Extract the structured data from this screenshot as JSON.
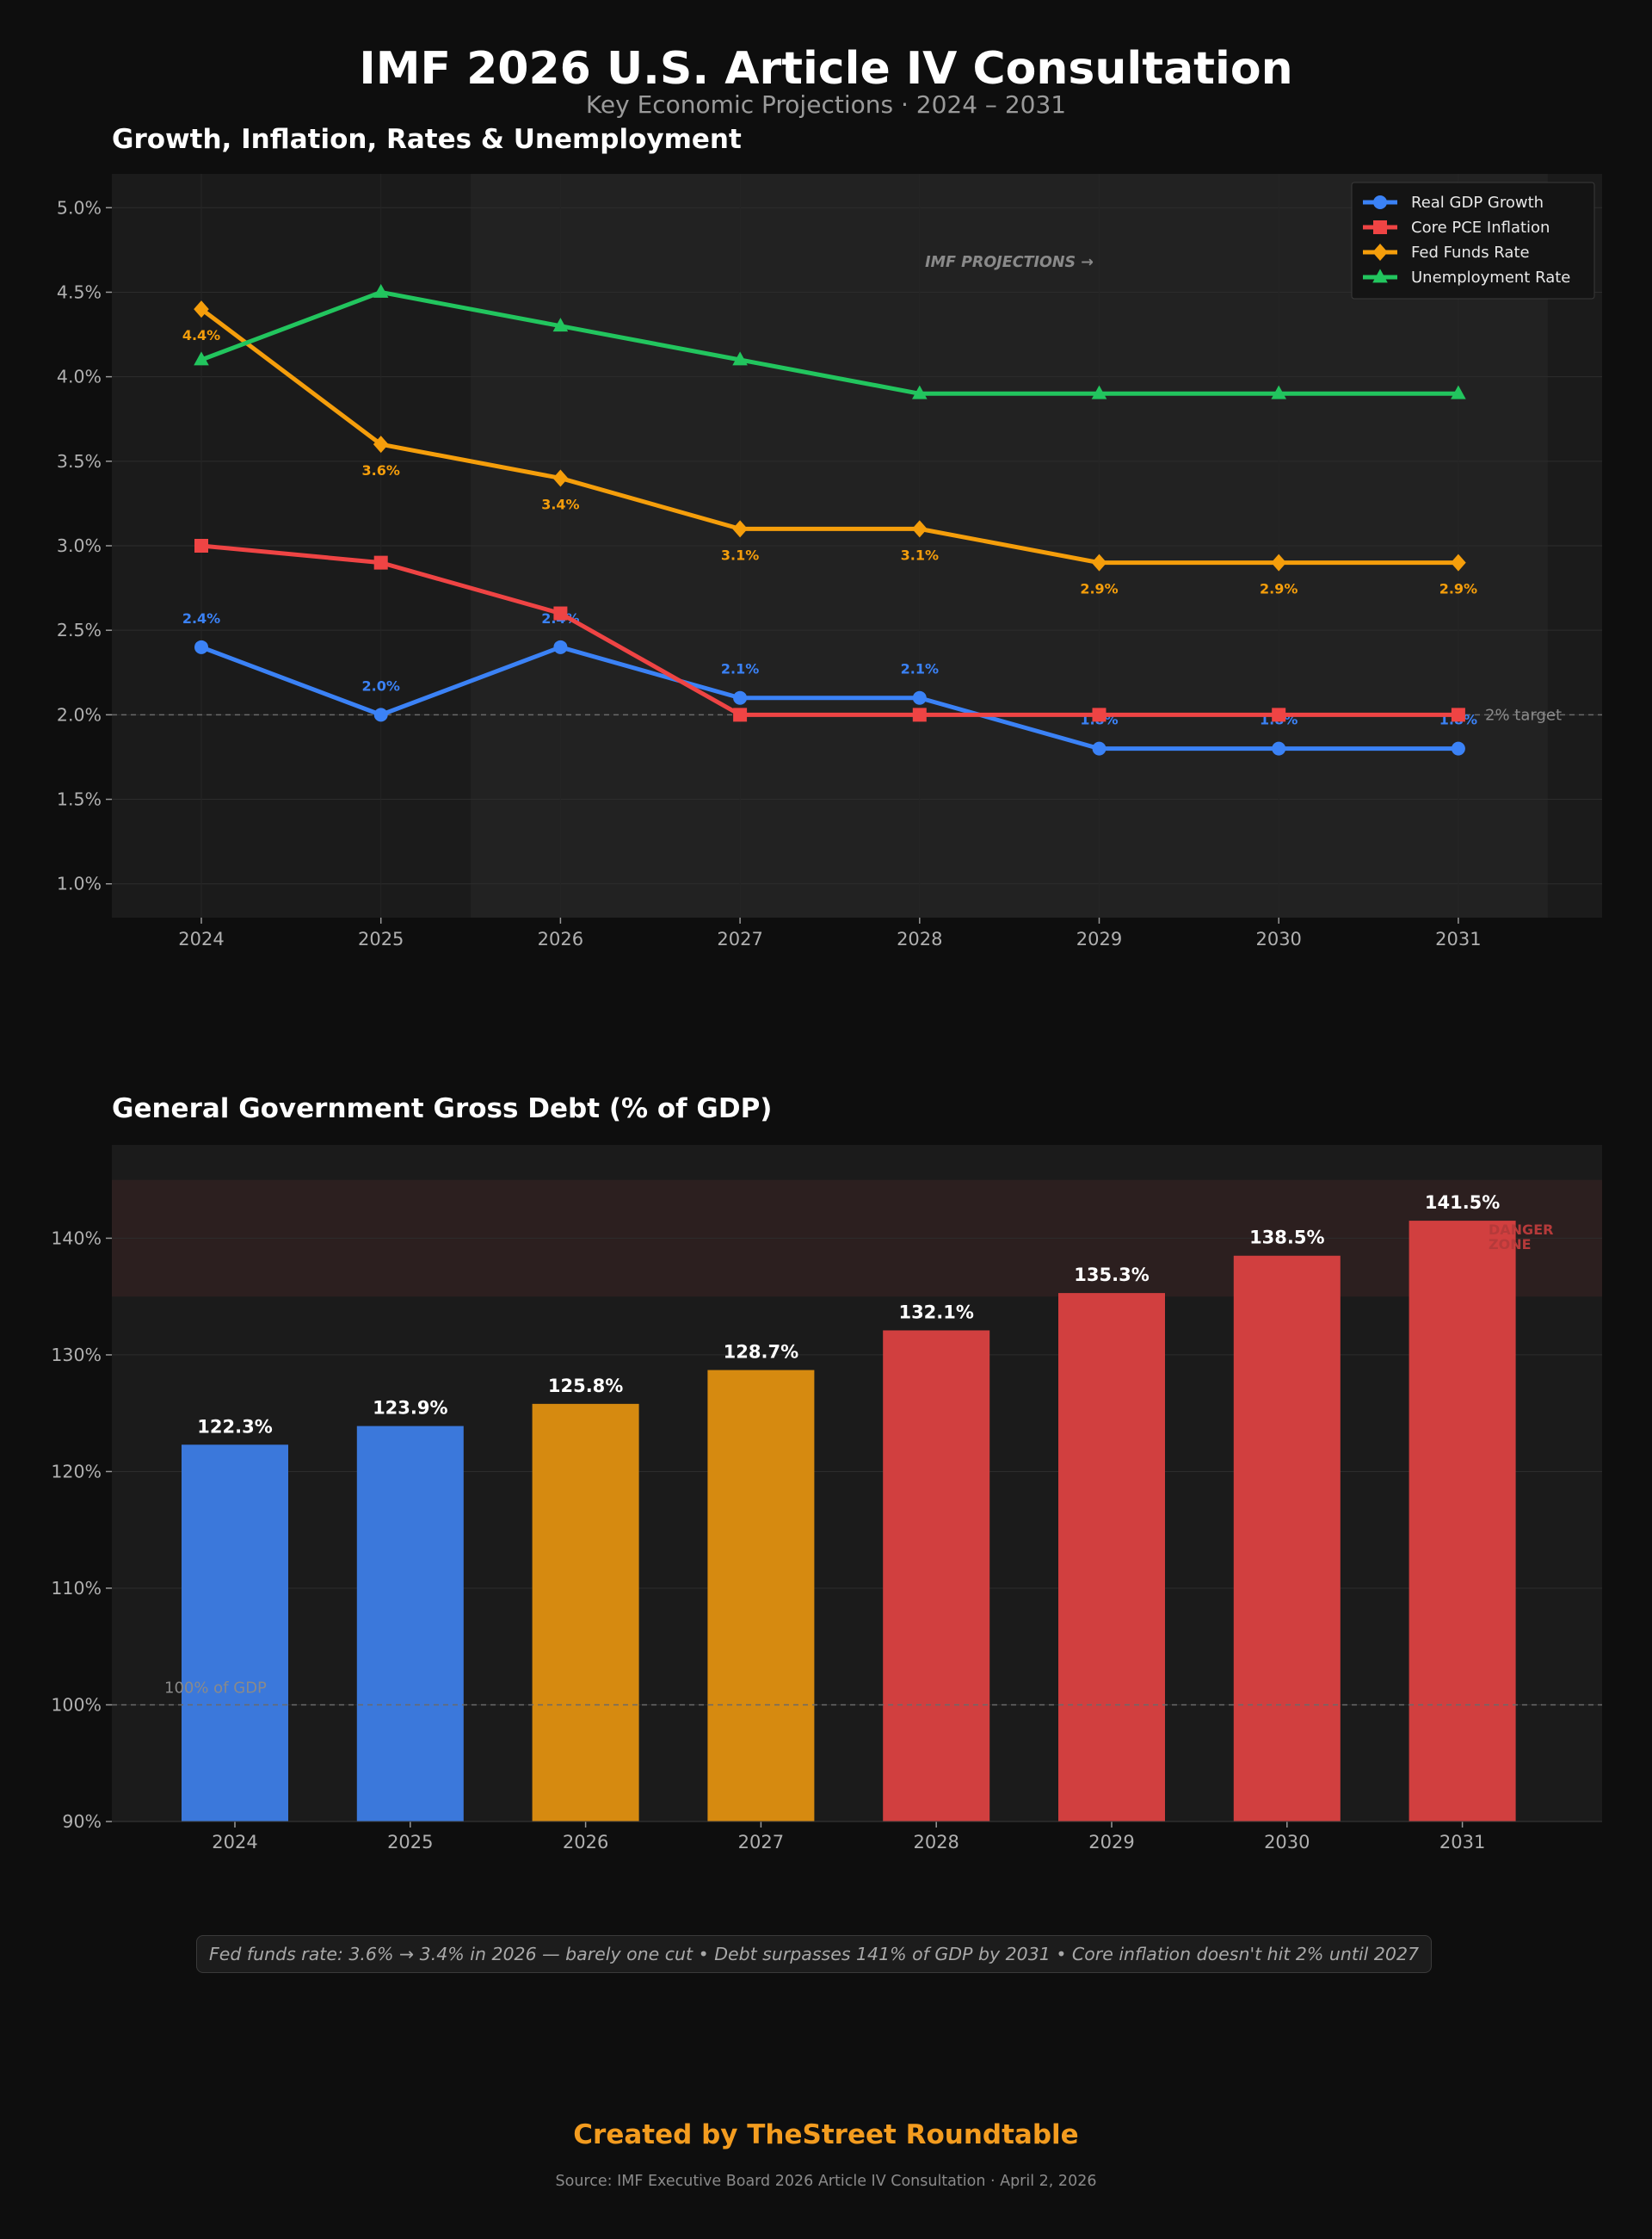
{
  "header": {
    "title": "IMF 2026 U.S. Article IV Consultation",
    "subtitle": "Key Economic Projections  ·  2024 – 2031"
  },
  "chart_data": [
    {
      "type": "line",
      "title": "Growth, Inflation, Rates & Unemployment",
      "x": [
        "2024",
        "2025",
        "2026",
        "2027",
        "2028",
        "2029",
        "2030",
        "2031"
      ],
      "ylim": [
        0.8,
        5.2
      ],
      "y_ticks": [
        "1.0%",
        "1.5%",
        "2.0%",
        "2.5%",
        "3.0%",
        "3.5%",
        "4.0%",
        "4.5%",
        "5.0%"
      ],
      "grid": true,
      "legend": "top-right",
      "projection_label": "IMF PROJECTIONS →",
      "projection_start": "2026",
      "reference_line": {
        "value": 2.0,
        "label": "2% target"
      },
      "series": [
        {
          "name": "Real GDP Growth",
          "color": "#3b82f6",
          "marker": "circle",
          "values": [
            2.4,
            2.0,
            2.4,
            2.1,
            2.1,
            1.8,
            1.8,
            1.8
          ],
          "labels": [
            "2.4%",
            "2.0%",
            "2.4%",
            "2.1%",
            "2.1%",
            "1.8%",
            "1.8%",
            "1.8%"
          ]
        },
        {
          "name": "Core PCE Inflation",
          "color": "#ef4444",
          "marker": "square",
          "values": [
            3.0,
            2.9,
            2.6,
            2.0,
            2.0,
            2.0,
            2.0,
            2.0
          ]
        },
        {
          "name": "Fed Funds Rate",
          "color": "#f59e0b",
          "marker": "diamond",
          "values": [
            4.4,
            3.6,
            3.4,
            3.1,
            3.1,
            2.9,
            2.9,
            2.9
          ],
          "labels": [
            "4.4%",
            "3.6%",
            "3.4%",
            "3.1%",
            "3.1%",
            "2.9%",
            "2.9%",
            "2.9%"
          ]
        },
        {
          "name": "Unemployment Rate",
          "color": "#22c55e",
          "marker": "triangle",
          "values": [
            4.1,
            4.5,
            4.3,
            4.1,
            3.9,
            3.9,
            3.9,
            3.9
          ]
        }
      ]
    },
    {
      "type": "bar",
      "title": "General Government Gross Debt (% of GDP)",
      "categories": [
        "2024",
        "2025",
        "2026",
        "2027",
        "2028",
        "2029",
        "2030",
        "2031"
      ],
      "values": [
        122.3,
        123.9,
        125.8,
        128.7,
        132.1,
        135.3,
        138.5,
        141.5
      ],
      "labels": [
        "122.3%",
        "123.9%",
        "125.8%",
        "128.7%",
        "132.1%",
        "135.3%",
        "138.5%",
        "141.5%"
      ],
      "bar_colors": [
        "#3b78db",
        "#3b78db",
        "#d68a10",
        "#d68a10",
        "#d13f3f",
        "#d13f3f",
        "#d13f3f",
        "#d13f3f"
      ],
      "ylim": [
        90,
        148
      ],
      "y_ticks": [
        "90%",
        "100%",
        "110%",
        "120%",
        "130%",
        "140%"
      ],
      "grid": true,
      "reference_line": {
        "value": 100,
        "label": "100% of GDP"
      },
      "danger_zone": {
        "from": 135,
        "to": 145,
        "label_line1": "DANGER",
        "label_line2": "ZONE"
      }
    }
  ],
  "insight": "Fed funds rate: 3.6% → 3.4% in 2026 — barely one cut  •  Debt surpasses 141% of GDP by 2031  •  Core inflation doesn't hit 2% until 2027",
  "footer": {
    "credit": "Created by TheStreet Roundtable",
    "source": "Source: IMF Executive Board 2026 Article IV Consultation  ·  April 2, 2026"
  },
  "colors": {
    "background": "#0e0e0e",
    "plot_background": "#1b1b1b",
    "projection_shade": "#222222",
    "danger_shade": "#2c1f1f",
    "accent": "#f39c1f"
  }
}
